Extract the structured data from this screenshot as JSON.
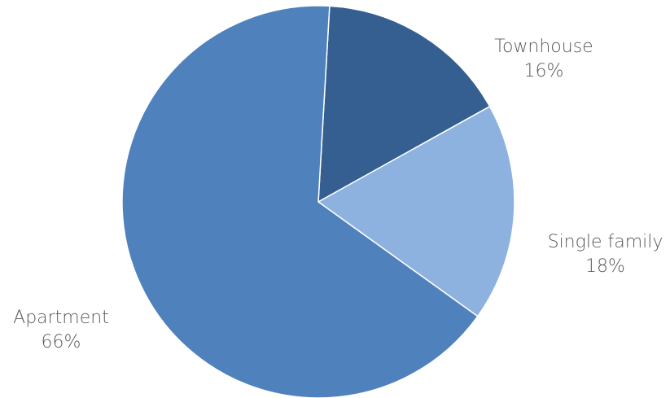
{
  "chart_data": {
    "type": "pie",
    "title": "",
    "categories": [
      "Townhouse",
      "Single family",
      "Apartment"
    ],
    "values": [
      16,
      18,
      66
    ],
    "value_labels": [
      "16%",
      "18%",
      "66%"
    ],
    "colors": [
      "#355F91",
      "#8EB2E0",
      "#4F81BD"
    ],
    "start_angle_deg": 3.3,
    "direction": "clockwise",
    "legend": "none"
  },
  "labels": {
    "townhouse": {
      "name": "Townhouse",
      "value": "16%"
    },
    "single_family": {
      "name": "Single family",
      "value": "18%"
    },
    "apartment": {
      "name": "Apartment",
      "value": "66%"
    }
  }
}
